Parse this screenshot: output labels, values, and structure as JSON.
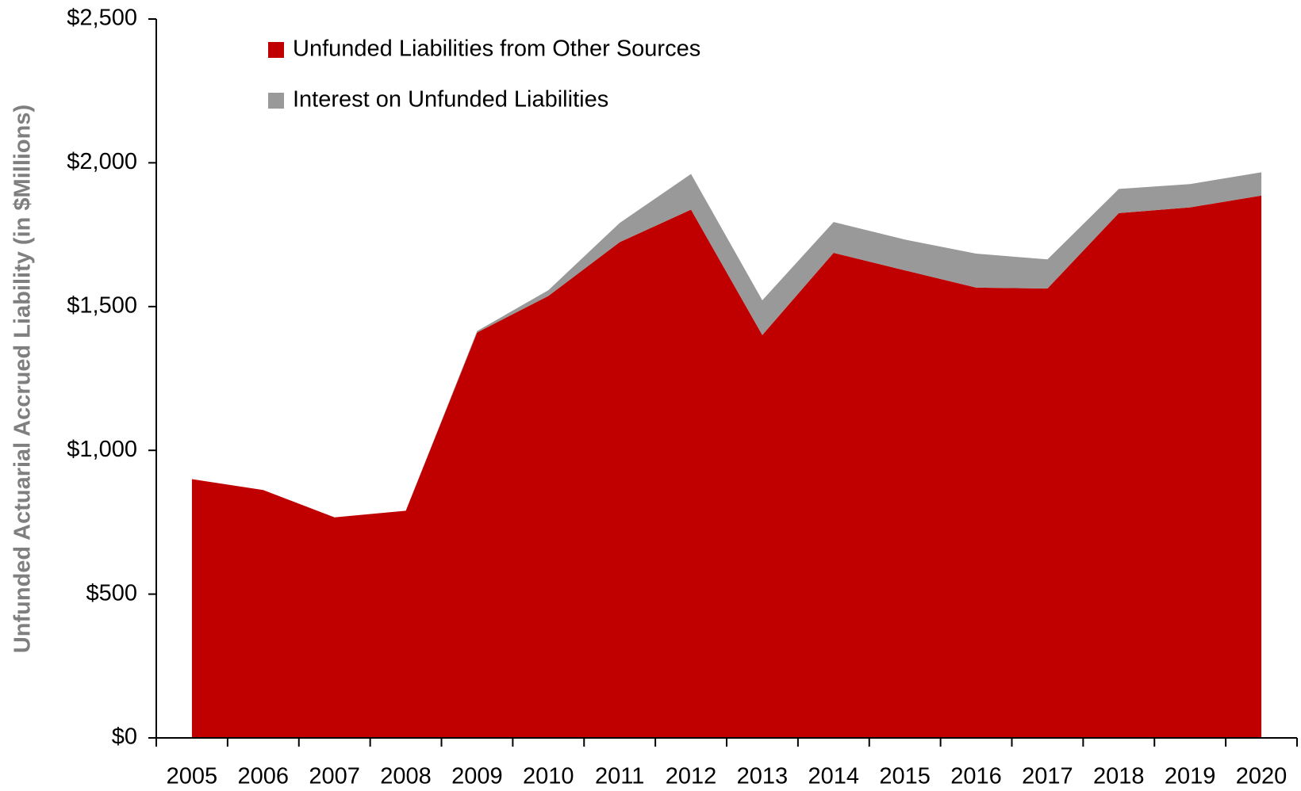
{
  "chart_data": {
    "type": "stacked-area",
    "y_label": "Unfunded Actuarial Accrued Liability (in $Millions)",
    "categories": [
      "2005",
      "2006",
      "2007",
      "2008",
      "2009",
      "2010",
      "2011",
      "2012",
      "2013",
      "2014",
      "2015",
      "2016",
      "2017",
      "2018",
      "2019",
      "2020"
    ],
    "series": [
      {
        "name": "Unfunded Liabilities from Other Sources",
        "color": "#c00000",
        "values": [
          900,
          862,
          767,
          790,
          1410,
          1537,
          1724,
          1837,
          1401,
          1687,
          1626,
          1566,
          1563,
          1825,
          1845,
          1886
        ]
      },
      {
        "name": "Interest on Unfunded Liabilities",
        "color": "#999999",
        "values": [
          0,
          0,
          0,
          0,
          5,
          20,
          67,
          124,
          121,
          107,
          107,
          118,
          101,
          84,
          81,
          81
        ]
      }
    ],
    "ylim": [
      0,
      2500
    ],
    "yticks": [
      {
        "value": 0,
        "label": "$0"
      },
      {
        "value": 500,
        "label": "$500"
      },
      {
        "value": 1000,
        "label": "$1,000"
      },
      {
        "value": 1500,
        "label": "$1,500"
      },
      {
        "value": 2000,
        "label": "$2,000"
      },
      {
        "value": 2500,
        "label": "$2,500"
      }
    ],
    "legend": "top-left",
    "grid": false
  }
}
